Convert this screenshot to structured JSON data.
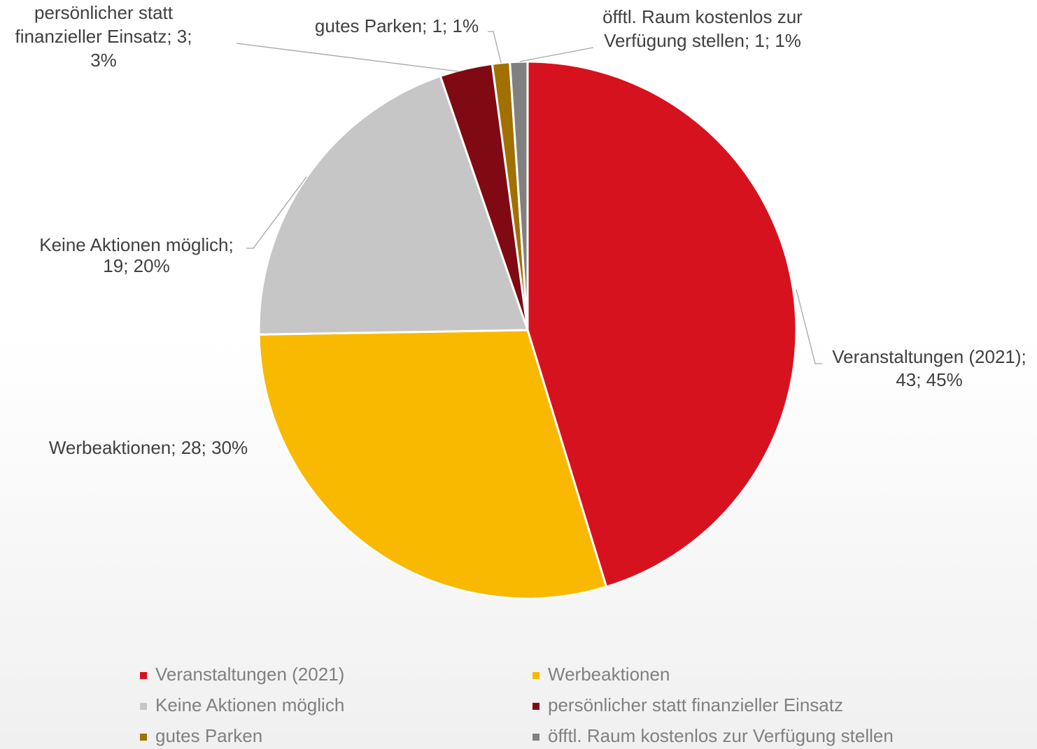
{
  "chart_data": {
    "type": "pie",
    "categories": [
      "Veranstaltungen (2021)",
      "Werbeaktionen",
      "Keine Aktionen möglich",
      "persönlicher statt finanzieller Einsatz",
      "gutes Parken",
      "öfftl. Raum kostenlos zur Verfügung stellen"
    ],
    "values": [
      43,
      28,
      19,
      3,
      1,
      1
    ],
    "value_labels": [
      [
        "Veranstaltungen (2021);",
        "43; 45%"
      ],
      [
        "Werbeaktionen; 28; 30%"
      ],
      [
        "Keine Aktionen möglich;",
        "19; 20%"
      ],
      [
        "persönlicher statt",
        "finanzieller Einsatz; 3;",
        "3%"
      ],
      [
        "gutes Parken; 1; 1%"
      ],
      [
        "öfftl. Raum kostenlos zur",
        "Verfügung stellen; 1; 1%"
      ]
    ],
    "colors": [
      "#d7121f",
      "#f8b900",
      "#c6c6c6",
      "#7f0a13",
      "#a07000",
      "#808080"
    ],
    "legend": "bottom"
  }
}
